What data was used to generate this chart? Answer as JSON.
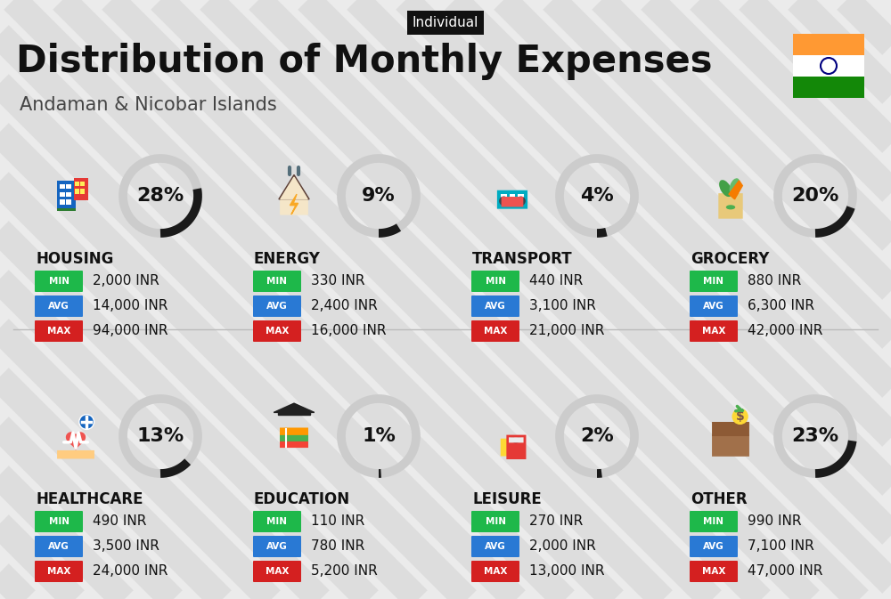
{
  "title": "Distribution of Monthly Expenses",
  "subtitle": "Andaman & Nicobar Islands",
  "tag": "Individual",
  "bg_color": "#ebebeb",
  "categories": [
    {
      "name": "HOUSING",
      "pct": 28,
      "min": "2,000 INR",
      "avg": "14,000 INR",
      "max": "94,000 INR",
      "row": 0,
      "col": 0
    },
    {
      "name": "ENERGY",
      "pct": 9,
      "min": "330 INR",
      "avg": "2,400 INR",
      "max": "16,000 INR",
      "row": 0,
      "col": 1
    },
    {
      "name": "TRANSPORT",
      "pct": 4,
      "min": "440 INR",
      "avg": "3,100 INR",
      "max": "21,000 INR",
      "row": 0,
      "col": 2
    },
    {
      "name": "GROCERY",
      "pct": 20,
      "min": "880 INR",
      "avg": "6,300 INR",
      "max": "42,000 INR",
      "row": 0,
      "col": 3
    },
    {
      "name": "HEALTHCARE",
      "pct": 13,
      "min": "490 INR",
      "avg": "3,500 INR",
      "max": "24,000 INR",
      "row": 1,
      "col": 0
    },
    {
      "name": "EDUCATION",
      "pct": 1,
      "min": "110 INR",
      "avg": "780 INR",
      "max": "5,200 INR",
      "row": 1,
      "col": 1
    },
    {
      "name": "LEISURE",
      "pct": 2,
      "min": "270 INR",
      "avg": "2,000 INR",
      "max": "13,000 INR",
      "row": 1,
      "col": 2
    },
    {
      "name": "OTHER",
      "pct": 23,
      "min": "990 INR",
      "avg": "7,100 INR",
      "max": "47,000 INR",
      "row": 1,
      "col": 3
    }
  ],
  "min_color": "#1eb84a",
  "avg_color": "#2979d4",
  "max_color": "#d42020",
  "label_color": "#ffffff",
  "title_color": "#111111",
  "subtitle_color": "#444444",
  "tag_bg": "#111111",
  "tag_fg": "#ffffff",
  "circle_filled_color": "#1a1a1a",
  "circle_empty_color": "#cccccc",
  "india_flag_orange": "#FF9933",
  "india_flag_green": "#138808",
  "india_flag_white": "#FFFFFF",
  "stripe_color": "#d0d0d0",
  "stripe_alpha": 0.5
}
